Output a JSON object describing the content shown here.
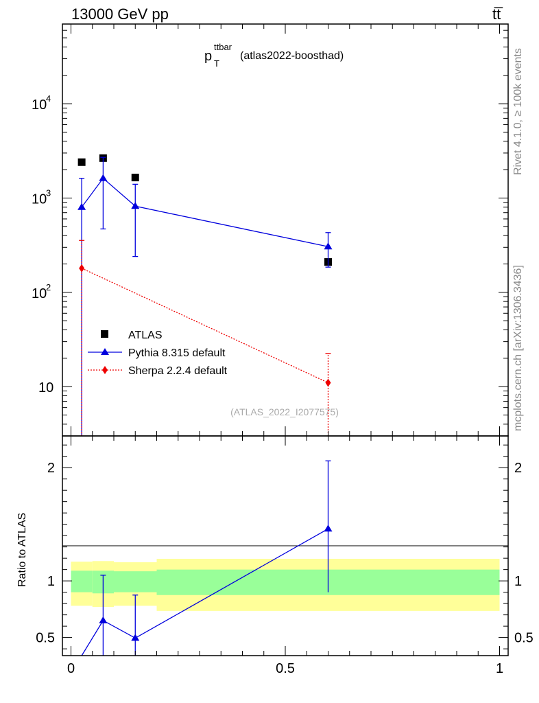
{
  "header": {
    "left": "13000 GeV pp",
    "right": "tt̅"
  },
  "side_labels": {
    "rivet": "Rivet 4.1.0, ≥ 100k events",
    "mcplots": "mcplots.cern.ch [arXiv:1306.3436]"
  },
  "chart_data": [
    {
      "type": "scatter",
      "title_main": "p",
      "title_sup": "ttbar",
      "title_sub": "T",
      "title_rest": "(atlas2022-boosthad)",
      "watermark": "(ATLAS_2022_I2077575)",
      "yscale": "log",
      "ylim": [
        3,
        70000
      ],
      "xlim": [
        -0.02,
        1.02
      ],
      "ytick_labels": [
        {
          "value": 10000,
          "base": "10",
          "exp": "4"
        },
        {
          "value": 1000,
          "base": "10",
          "exp": "3"
        },
        {
          "value": 100,
          "base": "10",
          "exp": "2"
        },
        {
          "value": 10,
          "base": "10",
          "exp": ""
        }
      ],
      "legend": [
        "ATLAS",
        "Pythia 8.315 default",
        "Sherpa 2.2.4 default"
      ],
      "series": [
        {
          "name": "ATLAS",
          "color": "#000000",
          "marker": "square",
          "x": [
            0.025,
            0.075,
            0.15,
            0.6
          ],
          "y": [
            2400,
            2650,
            1650,
            210
          ]
        },
        {
          "name": "Pythia 8.315 default",
          "color": "#0000dd",
          "marker": "triangle",
          "x": [
            0.025,
            0.075,
            0.15,
            0.6
          ],
          "y": [
            800,
            1620,
            820,
            305
          ],
          "err_lo": [
            800,
            1150,
            580,
            120
          ],
          "err_hi": [
            820,
            1080,
            580,
            125
          ]
        },
        {
          "name": "Sherpa 2.2.4 default",
          "color": "#ee0000",
          "marker": "diamond",
          "x": [
            0.025,
            0.6
          ],
          "y": [
            180,
            11
          ],
          "err_lo": [
            180,
            11
          ],
          "err_hi": [
            175,
            11.5
          ]
        }
      ]
    },
    {
      "type": "line",
      "ylabel": "Ratio to ATLAS",
      "ylim": [
        0.34,
        2.28
      ],
      "xlim": [
        -0.02,
        1.02
      ],
      "xtick_labels": [
        {
          "value": 0,
          "label": "0"
        },
        {
          "value": 0.5,
          "label": "0.5"
        },
        {
          "value": 1,
          "label": "1"
        }
      ],
      "ytick_labels": [
        {
          "value": 2,
          "label": "2"
        },
        {
          "value": 1,
          "label": "1"
        },
        {
          "value": 0.5,
          "label": "0.5"
        }
      ],
      "bands": [
        {
          "x0": 0.0,
          "x1": 0.05,
          "in_lo": 0.9,
          "in_hi": 1.09,
          "out_lo": 0.78,
          "out_hi": 1.17
        },
        {
          "x0": 0.05,
          "x1": 0.1,
          "in_lo": 0.89,
          "in_hi": 1.09,
          "out_lo": 0.77,
          "out_hi": 1.175
        },
        {
          "x0": 0.1,
          "x1": 0.2,
          "in_lo": 0.9,
          "in_hi": 1.085,
          "out_lo": 0.78,
          "out_hi": 1.165
        },
        {
          "x0": 0.2,
          "x1": 1.0,
          "in_lo": 0.875,
          "in_hi": 1.1,
          "out_lo": 0.735,
          "out_hi": 1.195
        }
      ],
      "band_colors": {
        "inner": "#99ff99",
        "outer": "#ffff99"
      },
      "series": [
        {
          "name": "Pythia 8.315 default",
          "color": "#0000dd",
          "x": [
            0.025,
            0.075,
            0.15,
            0.6
          ],
          "y": [
            0.33,
            0.65,
            0.495,
            1.46
          ],
          "err_lo": [
            0.0,
            0.45,
            0.36,
            0.56
          ],
          "err_hi": [
            0.0,
            0.4,
            0.38,
            0.6
          ]
        }
      ]
    }
  ]
}
